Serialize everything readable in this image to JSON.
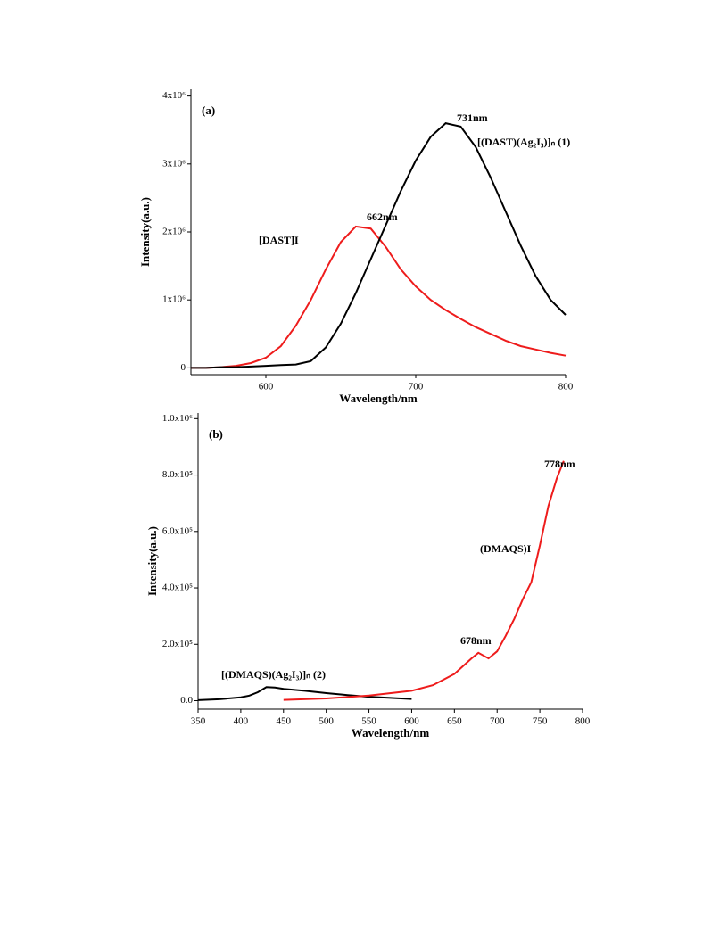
{
  "chart_data": [
    {
      "type": "line",
      "label": "(a)",
      "xlabel": "Wavelength/nm",
      "ylabel": "Intensity(a.u.)",
      "xlim": [
        550,
        800
      ],
      "xticks": [
        600,
        700,
        800
      ],
      "ylim": [
        -100000,
        4100000
      ],
      "yticks": [
        0,
        {
          "value": 1000000,
          "label": "1x10⁶"
        },
        {
          "value": 2000000,
          "label": "2x10⁶"
        },
        {
          "value": 3000000,
          "label": "3x10⁶"
        },
        {
          "value": 4000000,
          "label": "4x10⁶"
        }
      ],
      "series": [
        {
          "name": "[DAST]I",
          "color": "#ee1c1c",
          "x": [
            550,
            560,
            570,
            580,
            590,
            600,
            610,
            620,
            630,
            640,
            650,
            660,
            670,
            680,
            690,
            700,
            710,
            720,
            730,
            740,
            750,
            760,
            770,
            780,
            790,
            800
          ],
          "values": [
            0,
            0,
            10000,
            30000,
            70000,
            150000,
            320000,
            620000,
            1000000,
            1450000,
            1850000,
            2080000,
            2050000,
            1780000,
            1450000,
            1200000,
            1000000,
            850000,
            720000,
            600000,
            500000,
            400000,
            320000,
            270000,
            220000,
            180000
          ]
        },
        {
          "name": "[(DAST)(Ag₂I₃)]ₙ (1)",
          "color": "#000000",
          "x": [
            550,
            560,
            570,
            580,
            590,
            600,
            610,
            620,
            630,
            640,
            650,
            660,
            670,
            680,
            690,
            700,
            710,
            720,
            730,
            740,
            750,
            760,
            770,
            780,
            790,
            800
          ],
          "values": [
            0,
            0,
            10000,
            10000,
            20000,
            30000,
            40000,
            50000,
            100000,
            300000,
            650000,
            1100000,
            1600000,
            2100000,
            2600000,
            3050000,
            3400000,
            3600000,
            3550000,
            3250000,
            2800000,
            2300000,
            1800000,
            1350000,
            1000000,
            780000
          ]
        }
      ],
      "annotations": [
        {
          "text": "731nm",
          "color": "#000000"
        },
        {
          "text": "662nm",
          "color": "#ee1c1c"
        }
      ]
    },
    {
      "type": "line",
      "label": "(b)",
      "xlabel": "Wavelength/nm",
      "ylabel": "Intensity(a.u.)",
      "xlim": [
        350,
        800
      ],
      "xticks": [
        350,
        400,
        450,
        500,
        550,
        600,
        650,
        700,
        750,
        800
      ],
      "ylim": [
        -30000,
        1020000
      ],
      "yticks": [
        {
          "value": 0,
          "label": "0.0"
        },
        {
          "value": 200000,
          "label": "2.0x10⁵"
        },
        {
          "value": 400000,
          "label": "4.0x10⁵"
        },
        {
          "value": 600000,
          "label": "6.0x10⁵"
        },
        {
          "value": 800000,
          "label": "8.0x10⁵"
        },
        {
          "value": 1000000,
          "label": "1.0x10⁶"
        }
      ],
      "series": [
        {
          "name": "[(DMAQS)(Ag₂I₃)]ₙ (2)",
          "color": "#000000",
          "x": [
            350,
            375,
            400,
            410,
            420,
            430,
            440,
            450,
            475,
            500,
            525,
            550,
            575,
            600
          ],
          "values": [
            2000,
            5000,
            12000,
            18000,
            30000,
            48000,
            47000,
            42000,
            35000,
            27000,
            20000,
            14000,
            10000,
            6000
          ]
        },
        {
          "name": "(DMAQS)I",
          "color": "#ee1c1c",
          "x": [
            450,
            500,
            550,
            600,
            625,
            650,
            670,
            678,
            690,
            700,
            710,
            720,
            730,
            740,
            750,
            760,
            770,
            778
          ],
          "values": [
            3000,
            8000,
            18000,
            35000,
            55000,
            95000,
            150000,
            170000,
            150000,
            175000,
            230000,
            290000,
            360000,
            420000,
            550000,
            690000,
            790000,
            850000
          ]
        }
      ],
      "annotations": [
        {
          "text": "778nm",
          "color": "#ee1c1c"
        },
        {
          "text": "678nm",
          "color": "#ee1c1c"
        }
      ]
    }
  ]
}
